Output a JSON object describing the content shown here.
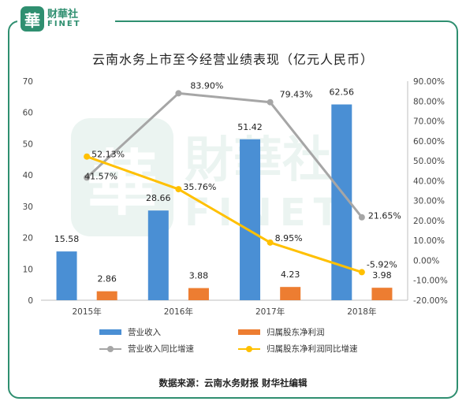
{
  "logo": {
    "badge": "華",
    "name_cn": "财華社",
    "name_en": "FINET"
  },
  "watermark": {
    "badge": "華",
    "name_cn": "財華社",
    "name_en": "FINET"
  },
  "title": "云南水务上市至今经营业绩表现（亿元人民币）",
  "source": "数据来源：云南水务财报   财华社编辑",
  "colors": {
    "revenue": "#4a8fd4",
    "profit": "#ed7d31",
    "revenue_growth": "#a6a6a6",
    "profit_growth": "#ffc000",
    "brand": "#2f8f70"
  },
  "chart_data": {
    "type": "bar",
    "categories": [
      "2015年",
      "2016年",
      "2017年",
      "2018年"
    ],
    "left_axis": {
      "min": 0,
      "max": 70,
      "ticks": [
        "0",
        "10",
        "20",
        "30",
        "40",
        "50",
        "60",
        "70"
      ]
    },
    "right_axis": {
      "min": -20,
      "max": 90,
      "ticks": [
        "-20.00%",
        "-10.00%",
        "0.00%",
        "10.00%",
        "20.00%",
        "30.00%",
        "40.00%",
        "50.00%",
        "60.00%",
        "70.00%",
        "80.00%",
        "90.00%"
      ]
    },
    "series": [
      {
        "name": "营业收入",
        "kind": "bar",
        "axis": "left",
        "values": [
          15.58,
          28.66,
          51.42,
          62.56
        ],
        "labels": [
          "15.58",
          "28.66",
          "51.42",
          "62.56"
        ]
      },
      {
        "name": "归属股东净利润",
        "kind": "bar",
        "axis": "left",
        "values": [
          2.86,
          3.88,
          4.23,
          3.98
        ],
        "labels": [
          "2.86",
          "3.88",
          "4.23",
          "3.98"
        ]
      },
      {
        "name": "营业收入同比增速",
        "kind": "line",
        "axis": "right",
        "values": [
          41.57,
          83.9,
          79.43,
          21.65
        ],
        "labels": [
          "41.57%",
          "83.90%",
          "79.43%",
          "21.65%"
        ]
      },
      {
        "name": "归属股东净利润同比增速",
        "kind": "line",
        "axis": "right",
        "values": [
          52.13,
          35.76,
          8.95,
          -5.92
        ],
        "labels": [
          "52.13%",
          "35.76%",
          "8.95%",
          "-5.92%"
        ]
      }
    ],
    "legend_position": "bottom"
  }
}
